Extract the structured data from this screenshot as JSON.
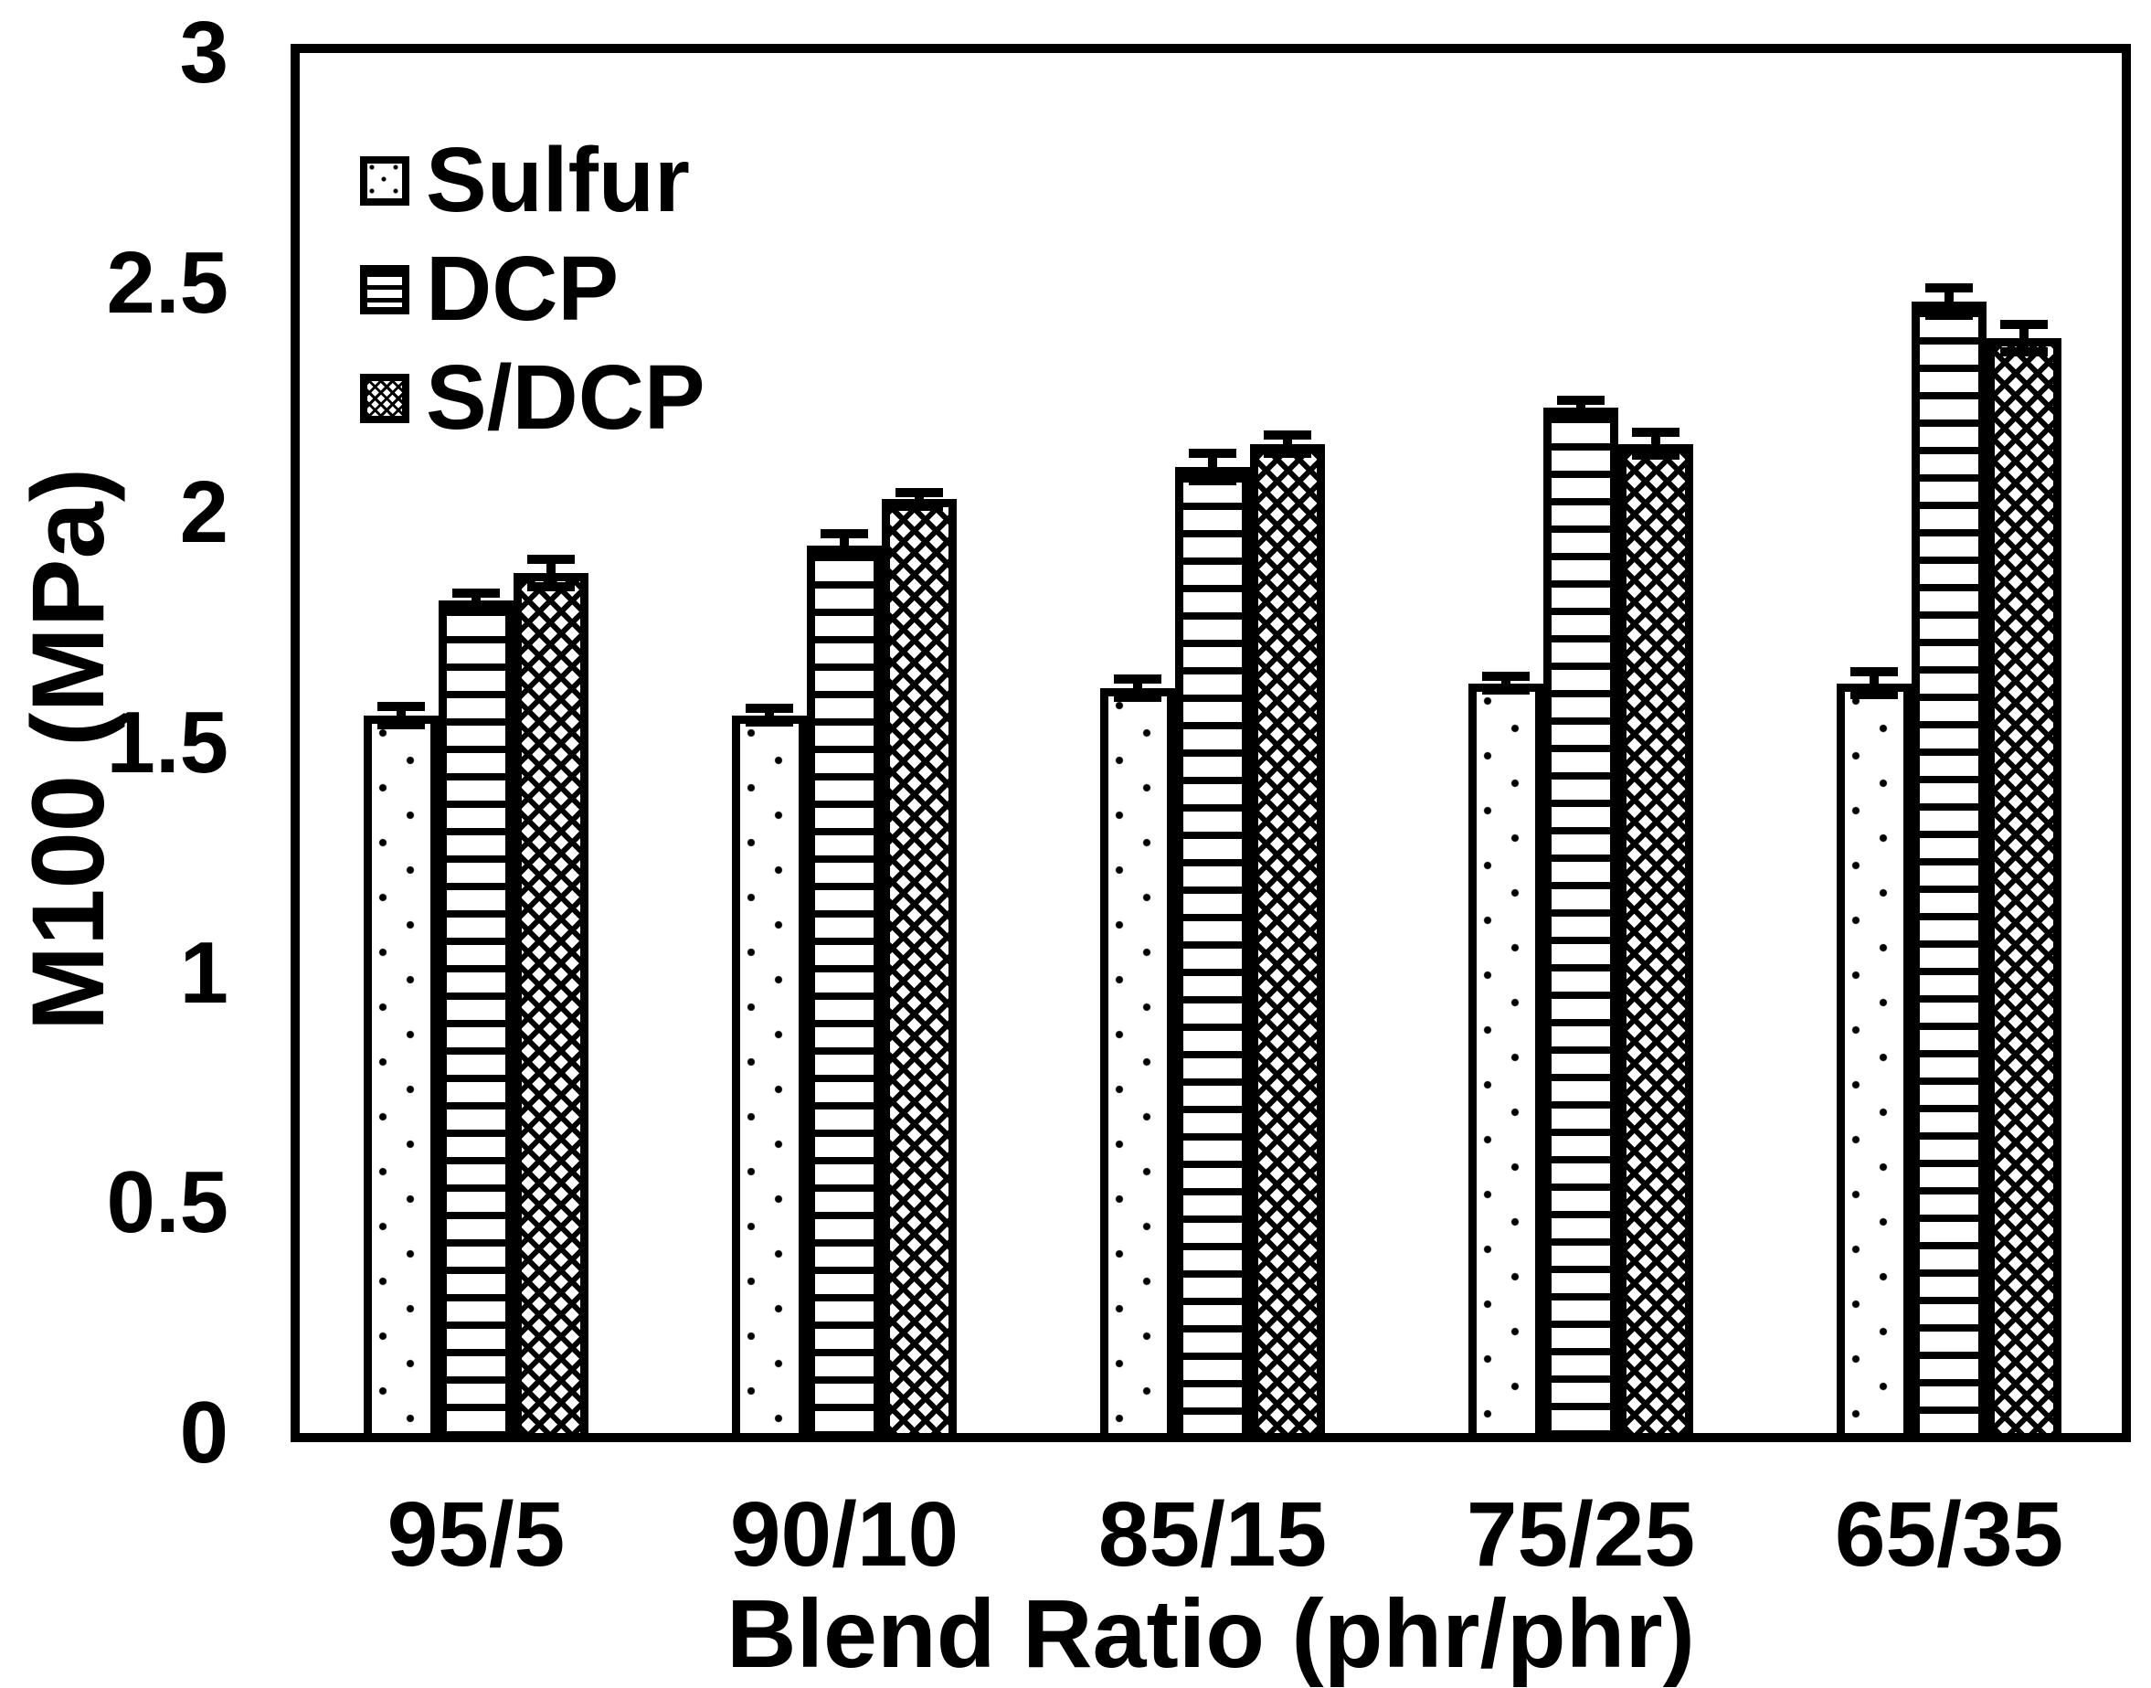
{
  "figure": {
    "background": "#ffffff",
    "foreground": "#000000"
  },
  "chart_data": {
    "type": "bar",
    "title": "",
    "xlabel": "Blend Ratio (phr/phr)",
    "ylabel": "M100 (MPa)",
    "ylim": [
      0,
      3
    ],
    "ytick_labels": [
      "0",
      "0.5",
      "1",
      "1.5",
      "2",
      "2.5",
      "3"
    ],
    "categories": [
      "95/5",
      "90/10",
      "85/15",
      "75/25",
      "65/35"
    ],
    "series": [
      {
        "name": "Sulfur",
        "pattern": "dots",
        "values": [
          1.56,
          1.56,
          1.62,
          1.63,
          1.63
        ],
        "errors": [
          0.02,
          0.015,
          0.02,
          0.015,
          0.025
        ]
      },
      {
        "name": "DCP",
        "pattern": "hlines",
        "values": [
          1.81,
          1.93,
          2.1,
          2.23,
          2.46
        ],
        "errors": [
          0.015,
          0.025,
          0.03,
          0.015,
          0.03
        ]
      },
      {
        "name": "S/DCP",
        "pattern": "crosshatch",
        "values": [
          1.87,
          2.03,
          2.15,
          2.15,
          2.38
        ],
        "errors": [
          0.03,
          0.015,
          0.02,
          0.025,
          0.03
        ]
      }
    ],
    "legend": {
      "position": "top-left-inside",
      "entries": [
        "Sulfur",
        "DCP",
        "S/DCP"
      ]
    },
    "grid": false,
    "error_bars": true
  }
}
